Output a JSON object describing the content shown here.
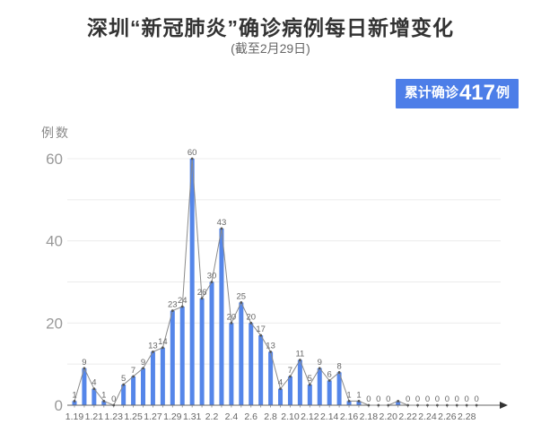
{
  "header": {
    "title": "深圳“新冠肺炎”确诊病例每日新增变化",
    "subtitle": "(截至2月29日)",
    "badge": {
      "prefix": "累计确诊",
      "value": "417",
      "suffix": "例"
    }
  },
  "colors": {
    "bar": "#5586e9",
    "badge_bg": "#4d7ee8",
    "line": "#8a8a8a",
    "marker": "#555555",
    "grid": "#ececec",
    "axis": "#666666",
    "point_label": "#666666",
    "tick_label": "#666666",
    "y_tick_label": "#999999"
  },
  "chart_data": {
    "type": "bar",
    "title": "深圳“新冠肺炎”确诊病例每日新增变化",
    "subtitle": "(截至2月29日)",
    "ylabel": "例数",
    "xlabel": "",
    "legend": "none",
    "grid": "horizontal, every 10 units",
    "overlay_line": "gray polyline with dot markers connecting bar tops, value labels above points",
    "categories": [
      "1.19",
      "1.20",
      "1.21",
      "1.22",
      "1.23",
      "1.24",
      "1.25",
      "1.26",
      "1.27",
      "1.28",
      "1.29",
      "1.30",
      "1.31",
      "2.1",
      "2.2",
      "2.3",
      "2.4",
      "2.5",
      "2.6",
      "2.7",
      "2.8",
      "2.9",
      "2.10",
      "2.11",
      "2.12",
      "2.13",
      "2.14",
      "2.15",
      "2.16",
      "2.17",
      "2.18",
      "2.19",
      "2.20",
      "2.21",
      "2.22",
      "2.23",
      "2.24",
      "2.25",
      "2.26",
      "2.27",
      "2.28",
      "2.29"
    ],
    "values": [
      1,
      9,
      4,
      1,
      0,
      5,
      7,
      9,
      13,
      14,
      23,
      24,
      60,
      26,
      30,
      43,
      20,
      25,
      20,
      17,
      13,
      4,
      7,
      11,
      5,
      9,
      6,
      8,
      1,
      1,
      0,
      0,
      0,
      1,
      0,
      0,
      0,
      0,
      0,
      0,
      0,
      0
    ],
    "point_labels": [
      "1",
      "9",
      "4",
      "1",
      "0",
      "5",
      "7",
      "9",
      "13",
      "14",
      "23",
      "24",
      "60",
      "26",
      "30",
      "43",
      "20",
      "25",
      "20",
      "17",
      "13",
      "4",
      "7",
      "11",
      "5",
      "9",
      "6",
      "8",
      "1",
      "1",
      "0",
      "0",
      "0",
      "",
      "0",
      "0",
      "0",
      "0",
      "0",
      "0",
      "0",
      "0"
    ],
    "x_tick_labels": [
      "1.19",
      "1.21",
      "1.23",
      "1.25",
      "1.27",
      "1.29",
      "1.31",
      "2.2",
      "2.4",
      "2.6",
      "2.8",
      "2.10",
      "2.12",
      "2.14",
      "2.16",
      "2.18",
      "2.20",
      "2.22",
      "2.24",
      "2.26",
      "2.28"
    ],
    "y_ticks": [
      0,
      20,
      40,
      60
    ],
    "ylim": [
      0,
      60
    ],
    "cumulative_total": 417
  }
}
